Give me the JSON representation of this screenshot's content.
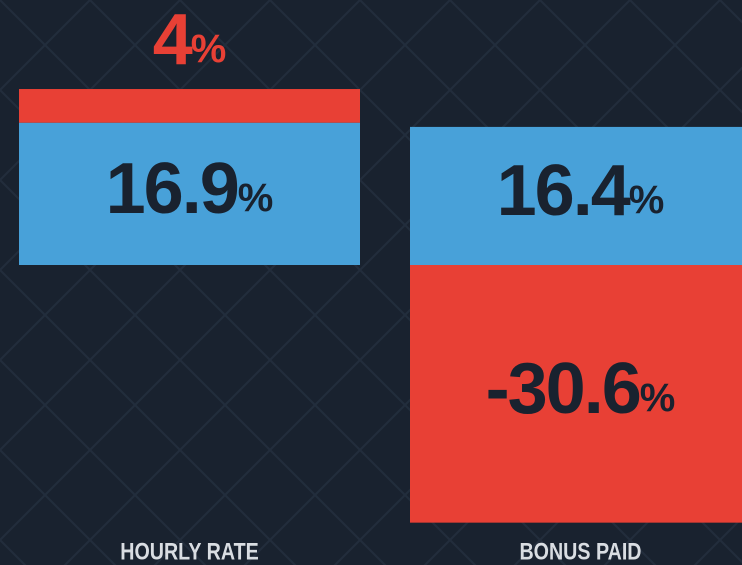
{
  "chart_data": {
    "type": "stacked-bar",
    "categories": [
      "HOURLY RATE",
      "BONUS PAID"
    ],
    "series": [
      {
        "color": "#48a1d9",
        "values": [
          16.9,
          16.4
        ],
        "value_labels": [
          "16.9%",
          "16.4%"
        ]
      },
      {
        "color": "#e84035",
        "values": [
          4,
          -30.6
        ],
        "value_labels": [
          "4%",
          "-30.6%"
        ]
      }
    ]
  }
}
